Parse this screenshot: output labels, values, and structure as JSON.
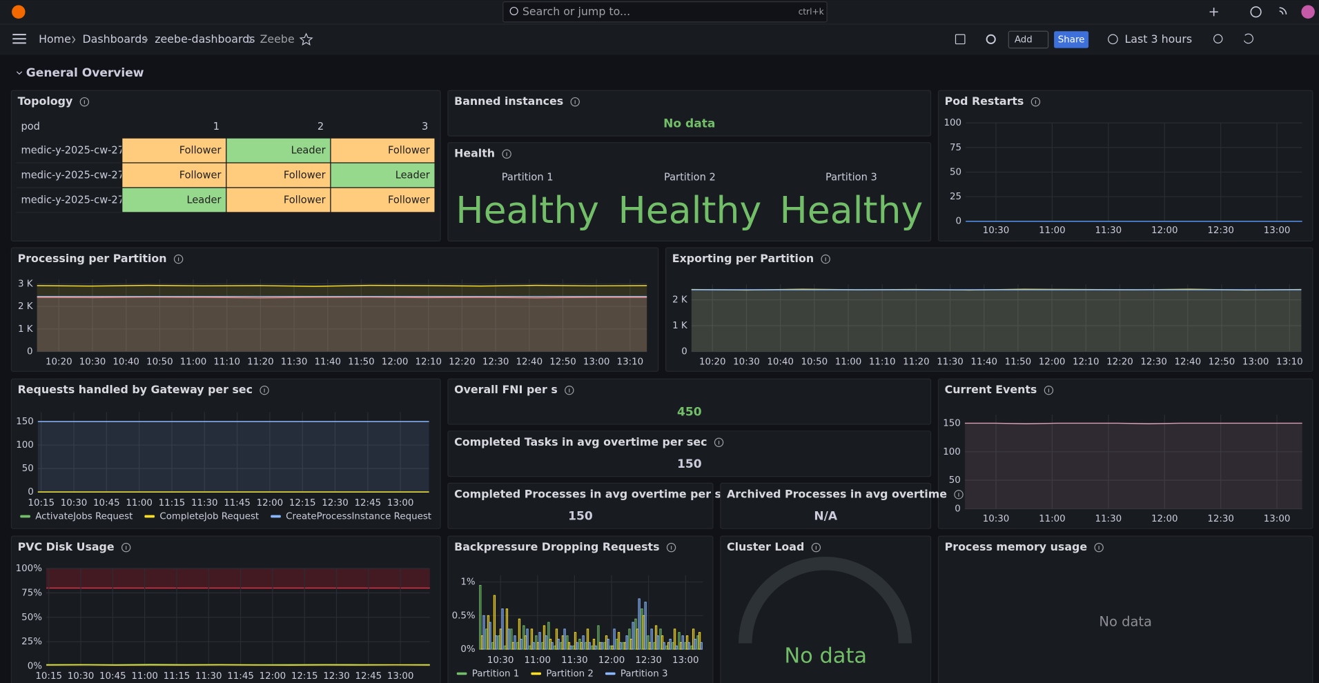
{
  "topbar": {
    "search": "Search or jump to...",
    "shortcut": "ctrl+k"
  },
  "breadcrumbs": [
    "Home",
    "Dashboards",
    "zeebe-dashboards",
    "Zeebe"
  ],
  "toolbar": {
    "add": "Add",
    "share": "Share",
    "time_range": "Last 3 hours"
  },
  "row_title": "General Overview",
  "panels": [
    {
      "type": "table",
      "title": "Topology",
      "columns": [
        "pod",
        "1",
        "2",
        "3"
      ],
      "rows": [
        [
          "medic-y-2025-cw-27",
          "Follower",
          "Leader",
          "Follower"
        ],
        [
          "medic-y-2025-cw-27",
          "Follower",
          "Follower",
          "Leader"
        ],
        [
          "medic-y-2025-cw-27",
          "Leader",
          "Follower",
          "Follower"
        ]
      ],
      "state_colors": {
        "Leader": "#96d98d",
        "Follower": "#ffcb7d"
      }
    },
    {
      "type": "stat",
      "title": "Banned instances",
      "value": "No data",
      "color": "#73bf69"
    },
    {
      "type": "line",
      "title": "Pod Restarts",
      "ylim": [
        0,
        100
      ],
      "yticks": [
        0,
        25,
        50,
        75,
        100
      ],
      "xticks": [
        "10:30",
        "11:00",
        "11:30",
        "12:00",
        "12:30",
        "13:00"
      ],
      "series": [
        {
          "color": "#5794f2",
          "values": [
            0,
            0,
            0,
            0,
            0,
            0,
            0,
            0,
            0,
            0,
            0,
            0
          ]
        }
      ]
    },
    {
      "type": "health",
      "title": "Health",
      "items": [
        {
          "label": "Partition 1",
          "value": "Healthy"
        },
        {
          "label": "Partition 2",
          "value": "Healthy"
        },
        {
          "label": "Partition 3",
          "value": "Healthy"
        }
      ],
      "color": "#73bf69"
    },
    {
      "type": "line",
      "title": "Processing per Partition",
      "area": true,
      "ylim": [
        0,
        3200
      ],
      "yticks": [
        0,
        {
          "value": 1000,
          "label": "1 K"
        },
        {
          "value": 2000,
          "label": "2 K"
        },
        {
          "value": 3000,
          "label": "3 K"
        }
      ],
      "xticks": [
        "10:20",
        "10:30",
        "10:40",
        "10:50",
        "11:00",
        "11:10",
        "11:20",
        "11:30",
        "11:40",
        "11:50",
        "12:00",
        "12:10",
        "12:20",
        "12:30",
        "12:40",
        "12:50",
        "13:00",
        "13:10"
      ],
      "series": [
        {
          "color": "#ff7383",
          "values": [
            2400,
            2390,
            2410,
            2400,
            2380,
            2400,
            2410,
            2390,
            2400,
            2380,
            2400,
            2400
          ]
        },
        {
          "color": "#8ab8ff",
          "values": [
            2440,
            2440,
            2440,
            2440,
            2440,
            2440,
            2440,
            2440,
            2440,
            2440,
            2440,
            2440
          ]
        },
        {
          "color": "#fade2a",
          "values": [
            2920,
            2900,
            2930,
            2910,
            2920,
            2890,
            2930,
            2920,
            2900,
            2930,
            2910,
            2920
          ]
        }
      ]
    },
    {
      "type": "line",
      "title": "Exporting per Partition",
      "area": true,
      "ylim": [
        0,
        2600
      ],
      "yticks": [
        0,
        {
          "value": 1000,
          "label": "1 K"
        },
        {
          "value": 2000,
          "label": "2 K"
        }
      ],
      "xticks": [
        "10:20",
        "10:30",
        "10:40",
        "10:50",
        "11:00",
        "11:10",
        "11:20",
        "11:30",
        "11:40",
        "11:50",
        "12:00",
        "12:10",
        "12:20",
        "12:30",
        "12:40",
        "12:50",
        "13:00",
        "13:10"
      ],
      "series": [
        {
          "color": "#fade2a",
          "values": [
            2400,
            2380,
            2410,
            2390,
            2400,
            2380,
            2410,
            2400,
            2390,
            2410,
            2380,
            2400
          ]
        },
        {
          "color": "#8ab8ff",
          "values": [
            2390,
            2390,
            2390,
            2390,
            2390,
            2390,
            2390,
            2390,
            2390,
            2390,
            2390,
            2390
          ]
        }
      ]
    },
    {
      "type": "line",
      "title": "Requests handled by Gateway per sec",
      "area": true,
      "ylim": [
        0,
        170
      ],
      "yticks": [
        0,
        50,
        100,
        150
      ],
      "xticks": [
        "10:15",
        "10:30",
        "10:45",
        "11:00",
        "11:15",
        "11:30",
        "11:45",
        "12:00",
        "12:15",
        "12:30",
        "12:45",
        "13:00"
      ],
      "series": [
        {
          "name": "ActivateJobs Request",
          "color": "#73bf69",
          "values": [
            0,
            0,
            0,
            0,
            0,
            0,
            0,
            0,
            0,
            0,
            0,
            0
          ]
        },
        {
          "name": "CompleteJob Request",
          "color": "#fade2a",
          "values": [
            0,
            0,
            0,
            0,
            0,
            0,
            0,
            0,
            0,
            0,
            0,
            0
          ]
        },
        {
          "name": "CreateProcessInstance Request",
          "color": "#8ab8ff",
          "values": [
            150,
            150,
            150,
            150,
            150,
            150,
            150,
            150,
            150,
            150,
            150,
            150
          ]
        }
      ]
    },
    {
      "type": "stat",
      "title": "Overall FNI per s",
      "value": 450,
      "color": "#73bf69"
    },
    {
      "type": "stat",
      "title": "Completed Tasks in avg overtime per sec",
      "value": 150,
      "color": "#ccccdc"
    },
    {
      "type": "line",
      "title": "Current Events",
      "area": true,
      "ylim": [
        0,
        165
      ],
      "yticks": [
        0,
        50,
        100,
        150
      ],
      "xticks": [
        "10:30",
        "11:00",
        "11:30",
        "12:00",
        "12:30",
        "13:00"
      ],
      "series": [
        {
          "color": "#d9a0b4",
          "values": [
            150,
            150,
            149,
            150,
            150,
            150,
            149,
            150,
            150,
            150,
            150,
            150
          ]
        }
      ]
    },
    {
      "type": "stat",
      "title": "Completed Processes in avg overtime per sec",
      "value": 150,
      "color": "#ccccdc"
    },
    {
      "type": "stat",
      "title": "Archived Processes in avg overtime",
      "value": "N/A",
      "color": "#ccccdc"
    },
    {
      "type": "line",
      "title": "PVC Disk Usage",
      "threshold": 80,
      "ylim": [
        0,
        100
      ],
      "yticks": [
        {
          "value": 0,
          "label": "0%"
        },
        {
          "value": 25,
          "label": "25%"
        },
        {
          "value": 50,
          "label": "50%"
        },
        {
          "value": 75,
          "label": "75%"
        },
        {
          "value": 100,
          "label": "100%"
        }
      ],
      "xticks": [
        "10:15",
        "10:30",
        "10:45",
        "11:00",
        "11:15",
        "11:30",
        "11:45",
        "12:00",
        "12:15",
        "12:30",
        "12:45",
        "13:00"
      ],
      "series": [
        {
          "color": "#73bf69",
          "values": [
            1.5,
            1.6,
            1.4,
            1.7,
            1.5,
            1.6,
            1.4,
            1.5,
            1.6,
            1.5,
            1.4,
            1.5
          ]
        },
        {
          "color": "#fade2a",
          "values": [
            1,
            1.2,
            0.9,
            1.1,
            1,
            1.2,
            1,
            0.9,
            1.1,
            1,
            1.2,
            1
          ]
        }
      ]
    },
    {
      "type": "bar",
      "title": "Backpressure Dropping Requests",
      "ylim": [
        0,
        1.1
      ],
      "yticks": [
        {
          "value": 0,
          "label": "0%"
        },
        {
          "value": 0.5,
          "label": "0.5%"
        },
        {
          "value": 1,
          "label": "1%"
        }
      ],
      "xticks": [
        "10:30",
        "11:00",
        "11:30",
        "12:00",
        "12:30",
        "13:00"
      ],
      "series": [
        {
          "name": "Partition 1",
          "color": "#73bf69",
          "values": [
            0.95,
            0.3,
            0.1,
            0.2,
            0.05,
            0.3,
            0.1,
            0.35,
            0.05,
            0.2,
            0.1,
            0.4,
            0.05,
            0.1,
            0.2,
            0.05,
            0.15,
            0.1,
            0.05,
            0.35,
            0.1,
            0.05,
            0.15,
            0.1,
            0.3,
            0.45,
            0.6,
            0.2,
            0.1,
            0.3,
            0.05,
            0.1,
            0.25,
            0.1,
            0.05,
            0.2
          ]
        },
        {
          "name": "Partition 2",
          "color": "#fade2a",
          "values": [
            0.2,
            0.5,
            0.8,
            0.3,
            0.6,
            0.1,
            0.45,
            0.2,
            0.3,
            0.1,
            0.35,
            0.15,
            0.3,
            0.2,
            0.1,
            0.25,
            0.1,
            0.3,
            0.15,
            0.1,
            0.2,
            0.05,
            0.25,
            0.1,
            0.15,
            0.3,
            0.5,
            0.1,
            0.35,
            0.2,
            0.1,
            0.3,
            0.1,
            0.2,
            0.3,
            0.25
          ]
        },
        {
          "name": "Partition 3",
          "color": "#8ab8ff",
          "values": [
            0.5,
            0.4,
            0.2,
            0.6,
            0.3,
            0.2,
            0.15,
            0.3,
            0.1,
            0.25,
            0.2,
            0.1,
            0.15,
            0.3,
            0.05,
            0.1,
            0.2,
            0.1,
            0.05,
            0.1,
            0.15,
            0.3,
            0.1,
            0.2,
            0.4,
            0.75,
            0.7,
            0.3,
            0.2,
            0.1,
            0.15,
            0.05,
            0.2,
            0.1,
            0.15,
            0.1
          ]
        }
      ]
    },
    {
      "type": "gauge",
      "title": "Cluster Load",
      "value": "No data",
      "color": "#73bf69"
    },
    {
      "type": "empty",
      "title": "Process memory usage",
      "value": "No data"
    }
  ]
}
